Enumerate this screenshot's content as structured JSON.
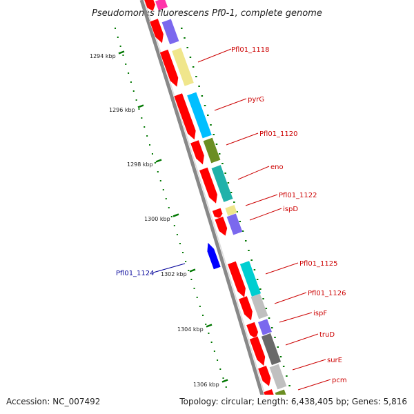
{
  "title": "Pseudomonas fluorescens Pf0-1, complete genome",
  "footer": {
    "accession": "Accession: NC_007492",
    "topology": "Topology: circular; Length: 6,438,405 bp; Genes: 5,816"
  },
  "scale_ticks": [
    "1294 kbp",
    "1296 kbp",
    "1298 kbp",
    "1300 kbp",
    "1302 kbp",
    "1304 kbp",
    "1306 kbp"
  ],
  "gene_labels": [
    {
      "text": "Pfl01_1118",
      "strand": "forward"
    },
    {
      "text": "pyrG",
      "strand": "forward"
    },
    {
      "text": "Pfl01_1120",
      "strand": "forward"
    },
    {
      "text": "eno",
      "strand": "forward"
    },
    {
      "text": "Pfl01_1122",
      "strand": "forward"
    },
    {
      "text": "ispD",
      "strand": "forward"
    },
    {
      "text": "Pfl01_1124",
      "strand": "reverse"
    },
    {
      "text": "Pfl01_1125",
      "strand": "forward"
    },
    {
      "text": "Pfl01_1126",
      "strand": "forward"
    },
    {
      "text": "ispF",
      "strand": "forward"
    },
    {
      "text": "truD",
      "strand": "forward"
    },
    {
      "text": "surE",
      "strand": "forward"
    },
    {
      "text": "pcm",
      "strand": "forward"
    }
  ],
  "colors": {
    "forward_gene": "#ff0000",
    "reverse_gene": "#0000ff",
    "forward_label": "#cc0000",
    "reverse_label": "#000099",
    "backbone": "#888888",
    "tick": "#007700"
  }
}
